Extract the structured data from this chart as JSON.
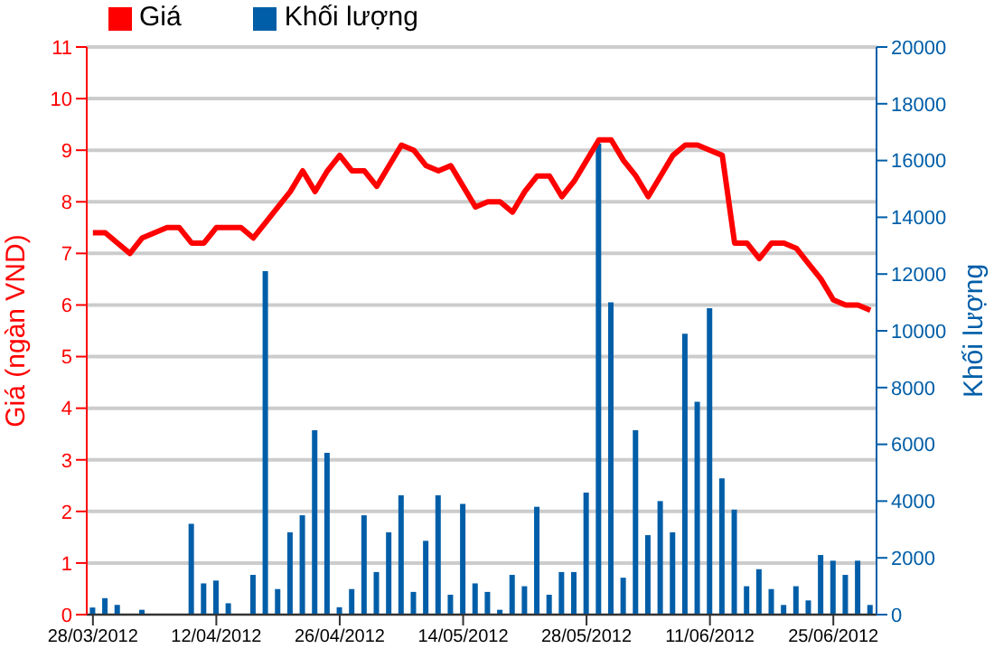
{
  "chart_data": {
    "type": "line",
    "ylabel": "Giá (ngàn VND)",
    "y2label": "Khối lượng",
    "categories": [
      "28/03/2012",
      null,
      null,
      null,
      null,
      null,
      null,
      null,
      null,
      null,
      "12/04/2012",
      null,
      null,
      null,
      null,
      null,
      null,
      null,
      null,
      null,
      "26/04/2012",
      null,
      null,
      null,
      null,
      null,
      null,
      null,
      null,
      null,
      "14/05/2012",
      null,
      null,
      null,
      null,
      null,
      null,
      null,
      null,
      null,
      "28/05/2012",
      null,
      null,
      null,
      null,
      null,
      null,
      null,
      null,
      null,
      "11/06/2012",
      null,
      null,
      null,
      null,
      null,
      null,
      null,
      null,
      null,
      "25/06/2012",
      null,
      null,
      null
    ],
    "series": [
      {
        "name": "Giá",
        "axis": "y",
        "color": "#ff0000",
        "values": [
          7.4,
          7.4,
          7.2,
          7.0,
          7.3,
          7.4,
          7.5,
          7.5,
          7.2,
          7.2,
          7.5,
          7.5,
          7.5,
          7.3,
          7.6,
          7.9,
          8.2,
          8.6,
          8.2,
          8.6,
          8.9,
          8.6,
          8.6,
          8.3,
          8.7,
          9.1,
          9.0,
          8.7,
          8.6,
          8.7,
          8.3,
          7.9,
          8.0,
          8.0,
          7.8,
          8.2,
          8.5,
          8.5,
          8.1,
          8.4,
          8.8,
          9.2,
          9.2,
          8.8,
          8.5,
          8.1,
          8.5,
          8.9,
          9.1,
          9.1,
          9.0,
          8.9,
          7.2,
          7.2,
          6.9,
          7.2,
          7.2,
          7.1,
          6.8,
          6.5,
          6.1,
          6.0,
          6.0,
          5.9
        ]
      },
      {
        "name": "Khối lượng",
        "type": "bar",
        "axis": "y2",
        "color": "#005ea8",
        "values": [
          250,
          580,
          340,
          null,
          170,
          null,
          null,
          null,
          3200,
          1100,
          1200,
          400,
          null,
          1400,
          12100,
          900,
          2900,
          3500,
          6500,
          5700,
          260,
          900,
          3500,
          1500,
          2900,
          4200,
          800,
          2600,
          4200,
          700,
          3900,
          1100,
          800,
          170,
          1400,
          1000,
          3800,
          700,
          1500,
          1500,
          4300,
          16600,
          11000,
          1300,
          6500,
          2800,
          4000,
          2900,
          9900,
          7500,
          10800,
          4800,
          3700,
          1000,
          1600,
          900,
          340,
          1000,
          500,
          2100,
          1900,
          1400,
          1900,
          340
        ]
      }
    ],
    "ylim": [
      0,
      11
    ],
    "yticks": [
      0,
      1,
      2,
      3,
      4,
      5,
      6,
      7,
      8,
      9,
      10,
      11
    ],
    "y2lim": [
      0,
      20000
    ],
    "y2ticks": [
      0,
      2000,
      4000,
      6000,
      8000,
      10000,
      12000,
      14000,
      16000,
      18000,
      20000
    ],
    "grid": "y",
    "legend": "top left",
    "marker": "none",
    "line_style": "solid"
  }
}
